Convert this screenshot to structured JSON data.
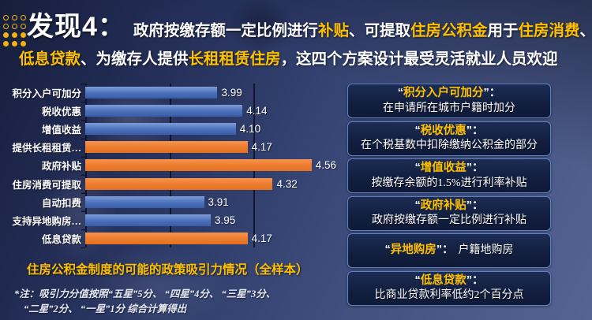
{
  "colors": {
    "accent": "#FFC000",
    "bar_blue": "#4472C4",
    "bar_orange": "#ED7D31"
  },
  "header": {
    "badge": "发现4：",
    "line1_segments": [
      {
        "text": "政府按缴存额一定比例进行",
        "color": "white"
      },
      {
        "text": "补贴",
        "color": "accent"
      },
      {
        "text": "、可提取",
        "color": "white"
      },
      {
        "text": "住房公积金",
        "color": "accent"
      },
      {
        "text": "用于",
        "color": "white"
      },
      {
        "text": "住房消费",
        "color": "accent"
      },
      {
        "text": "、",
        "color": "white"
      }
    ],
    "line2_segments": [
      {
        "text": "低息贷款",
        "color": "accent"
      },
      {
        "text": "、为缴存人提供",
        "color": "white"
      },
      {
        "text": "长租租赁住房",
        "color": "accent"
      },
      {
        "text": "，这四个方案设计最受灵活就业人员欢迎",
        "color": "white"
      }
    ]
  },
  "chart_data": {
    "type": "bar",
    "orientation": "horizontal",
    "title": "住房公积金制度的可能的政策吸引力情况（全样本）",
    "categories": [
      "积分入户可加分",
      "税收优惠",
      "增值收益",
      "提供长租租赁…",
      "政府补贴",
      "住房消费可提取",
      "自动扣费",
      "支持异地购房…",
      "低息贷款"
    ],
    "values": [
      3.99,
      4.14,
      4.1,
      4.17,
      4.56,
      4.32,
      3.91,
      3.95,
      4.17
    ],
    "value_labels": [
      "3.99",
      "4.14",
      "4.10",
      "4.17",
      "4.56",
      "4.32",
      "3.91",
      "3.95",
      "4.17"
    ],
    "bar_colors": [
      "blue",
      "blue",
      "blue",
      "orange",
      "orange",
      "orange",
      "blue",
      "blue",
      "orange"
    ],
    "axis": {
      "min": 3.2,
      "max": 4.7,
      "gridlines": [
        3.7,
        4.2
      ]
    },
    "grid": true,
    "legend": false,
    "note_line1": "*注：吸引力分值按照“五星”5分、 “四星”4分、 “三星”3分、",
    "note_line2": "“二星”2分、 “一星”1分 综合计算得出"
  },
  "info_boxes": [
    {
      "term": "积分入户可加分",
      "desc": "在申请所在城市户籍时加分",
      "single_line": false
    },
    {
      "term": "税收优惠",
      "desc": "在个税基数中扣除缴纳公积金的部分",
      "single_line": false
    },
    {
      "term": "增值收益",
      "desc": "按缴存余额的1.5%进行利率补贴",
      "single_line": false
    },
    {
      "term": "政府补贴",
      "desc": "政府按缴存额一定比例进行补贴",
      "single_line": false
    },
    {
      "term": "异地购房",
      "desc": "户籍地购房",
      "single_line": true
    },
    {
      "term": "低息贷款",
      "desc": "比商业贷款利率低约2个百分点",
      "single_line": false
    }
  ]
}
